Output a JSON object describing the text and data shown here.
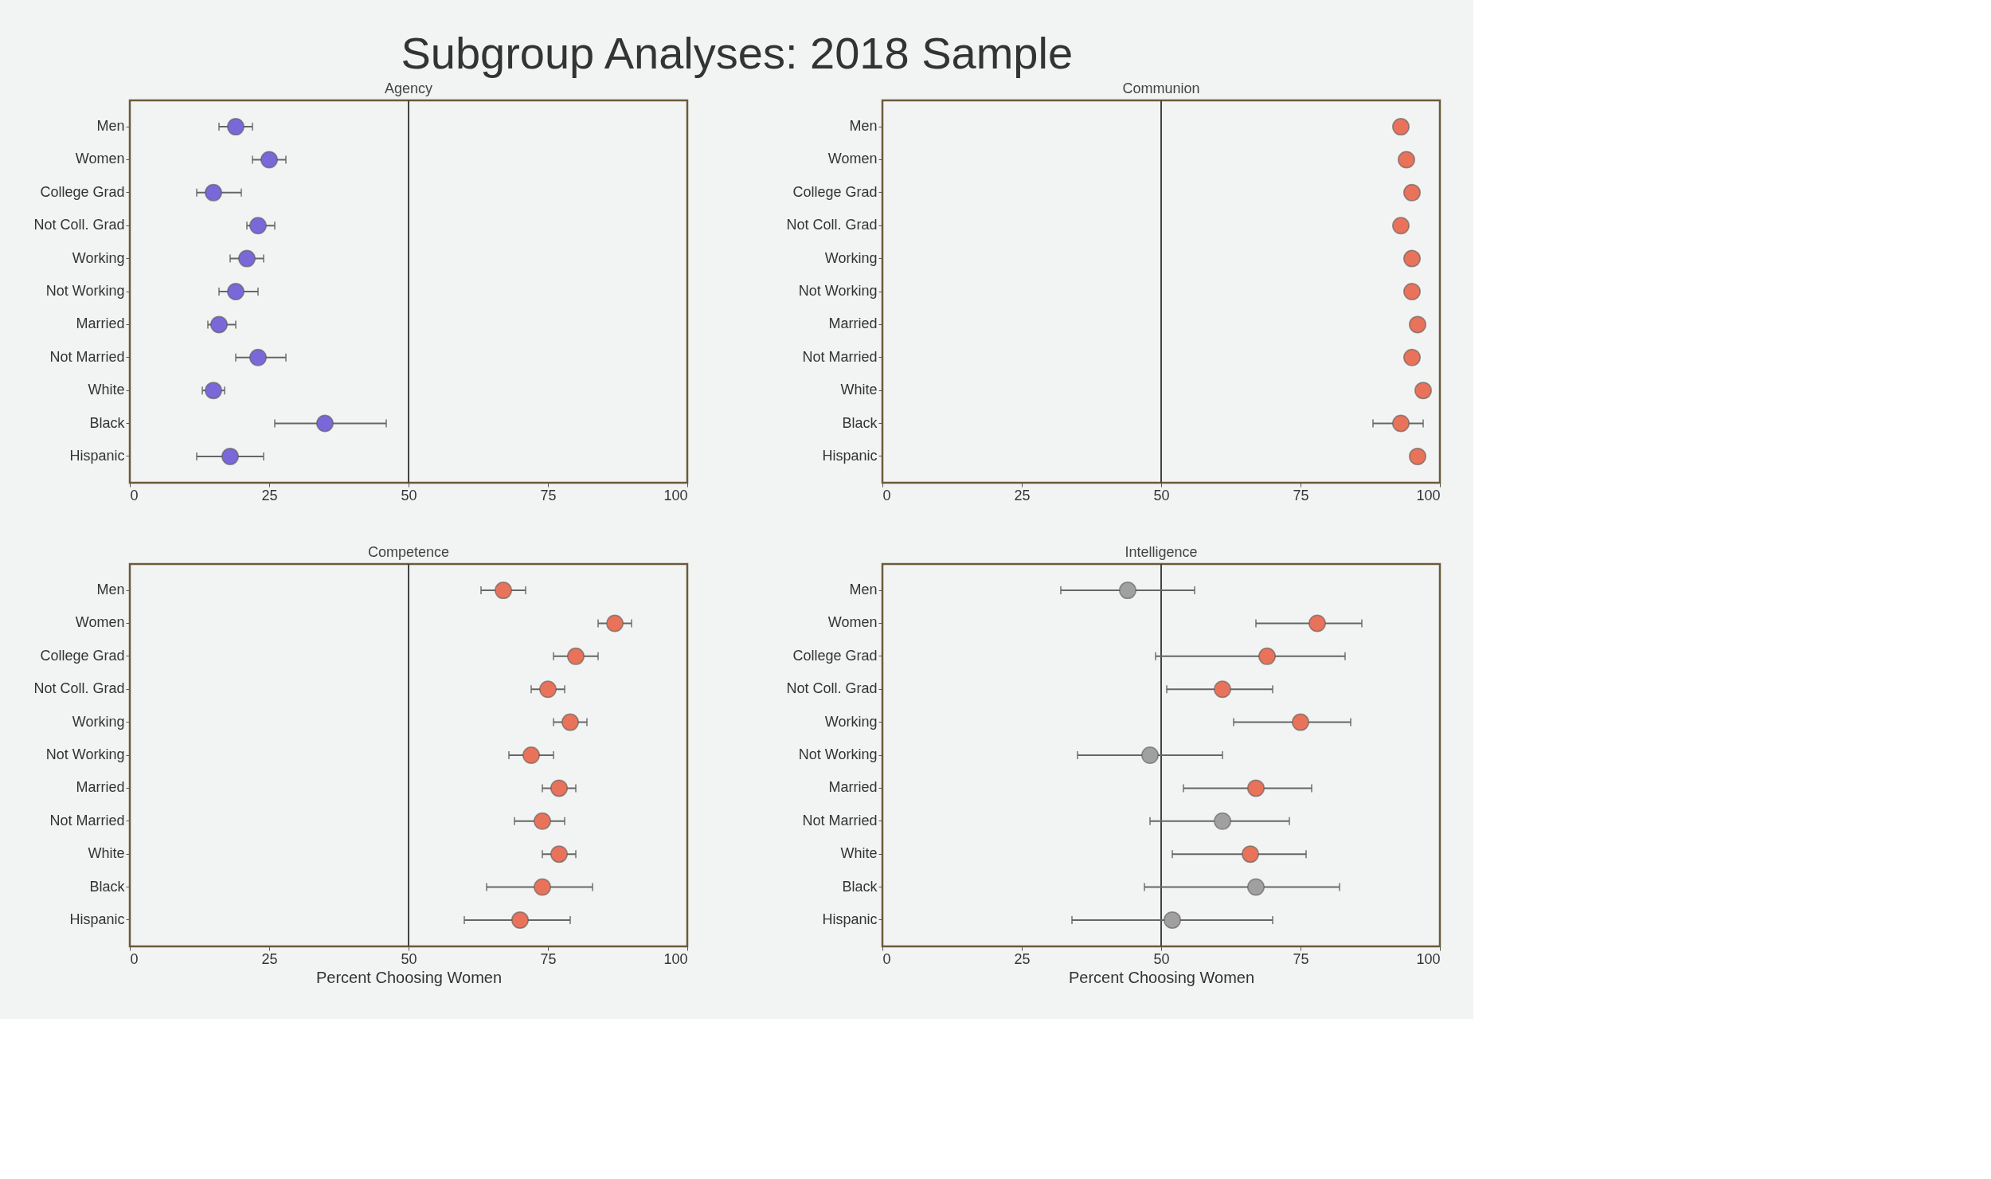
{
  "chart_data": [
    {
      "type": "other",
      "title": "Subgroup Analyses: 2018 Sample"
    },
    {
      "type": "scatter",
      "orientation": "horizontal",
      "title": "Agency",
      "marker": "circle",
      "color": "#7b68d8",
      "categories": [
        "Men",
        "Women",
        "College Grad",
        "Not Coll. Grad",
        "Working",
        "Not Working",
        "Married",
        "Not Married",
        "White",
        "Black",
        "Hispanic"
      ],
      "values": [
        19,
        25,
        15,
        23,
        21,
        19,
        16,
        23,
        15,
        35,
        18
      ],
      "errors": [
        [
          16,
          22
        ],
        [
          22,
          28
        ],
        [
          12,
          20
        ],
        [
          21,
          26
        ],
        [
          18,
          24
        ],
        [
          16,
          23
        ],
        [
          14,
          19
        ],
        [
          19,
          28
        ],
        [
          13,
          17
        ],
        [
          26,
          46
        ],
        [
          12,
          24
        ]
      ],
      "xlim": [
        0,
        100
      ],
      "xticks": [
        0,
        25,
        50,
        75,
        100
      ],
      "ref_lines": [
        {
          "axis": "x",
          "value": 50
        }
      ],
      "grid": false
    },
    {
      "type": "scatter",
      "orientation": "horizontal",
      "title": "Communion",
      "marker": "circle",
      "color": "#e8735a",
      "categories": [
        "Men",
        "Women",
        "College Grad",
        "Not Coll. Grad",
        "Working",
        "Not Working",
        "Married",
        "Not Married",
        "White",
        "Black",
        "Hispanic"
      ],
      "values": [
        93,
        94,
        95,
        93,
        95,
        95,
        96,
        95,
        97,
        93,
        96
      ],
      "errors": [
        null,
        null,
        null,
        null,
        null,
        null,
        null,
        null,
        null,
        [
          88,
          97
        ],
        null
      ],
      "xlim": [
        0,
        100
      ],
      "xticks": [
        0,
        25,
        50,
        75,
        100
      ],
      "ref_lines": [
        {
          "axis": "x",
          "value": 50
        }
      ],
      "grid": false
    },
    {
      "type": "scatter",
      "orientation": "horizontal",
      "title": "Competence",
      "xlabel": "Percent Choosing Women",
      "marker": "circle",
      "color": "#e8735a",
      "categories": [
        "Men",
        "Women",
        "College Grad",
        "Not Coll. Grad",
        "Working",
        "Not Working",
        "Married",
        "Not Married",
        "White",
        "Black",
        "Hispanic"
      ],
      "values": [
        67,
        87,
        80,
        75,
        79,
        72,
        77,
        74,
        77,
        74,
        70
      ],
      "errors": [
        [
          63,
          71
        ],
        [
          84,
          90
        ],
        [
          76,
          84
        ],
        [
          72,
          78
        ],
        [
          76,
          82
        ],
        [
          68,
          76
        ],
        [
          74,
          80
        ],
        [
          69,
          78
        ],
        [
          74,
          80
        ],
        [
          64,
          83
        ],
        [
          60,
          79
        ]
      ],
      "xlim": [
        0,
        100
      ],
      "xticks": [
        0,
        25,
        50,
        75,
        100
      ],
      "ref_lines": [
        {
          "axis": "x",
          "value": 50
        }
      ],
      "grid": false
    },
    {
      "type": "scatter",
      "orientation": "horizontal",
      "title": "Intelligence",
      "xlabel": "Percent Choosing Women",
      "marker": "circle",
      "categories": [
        "Men",
        "Women",
        "College Grad",
        "Not Coll. Grad",
        "Working",
        "Not Working",
        "Married",
        "Not Married",
        "White",
        "Black",
        "Hispanic"
      ],
      "values": [
        44,
        78,
        69,
        61,
        75,
        48,
        67,
        61,
        66,
        67,
        52
      ],
      "colors": [
        "#a0a0a0",
        "#e8735a",
        "#e8735a",
        "#e8735a",
        "#e8735a",
        "#a0a0a0",
        "#e8735a",
        "#a0a0a0",
        "#e8735a",
        "#a0a0a0",
        "#a0a0a0"
      ],
      "errors": [
        [
          32,
          56
        ],
        [
          67,
          86
        ],
        [
          49,
          83
        ],
        [
          51,
          70
        ],
        [
          63,
          84
        ],
        [
          35,
          61
        ],
        [
          54,
          77
        ],
        [
          48,
          73
        ],
        [
          52,
          76
        ],
        [
          47,
          82
        ],
        [
          34,
          70
        ]
      ],
      "xlim": [
        0,
        100
      ],
      "xticks": [
        0,
        25,
        50,
        75,
        100
      ],
      "ref_lines": [
        {
          "axis": "x",
          "value": 50
        }
      ],
      "grid": false
    }
  ]
}
